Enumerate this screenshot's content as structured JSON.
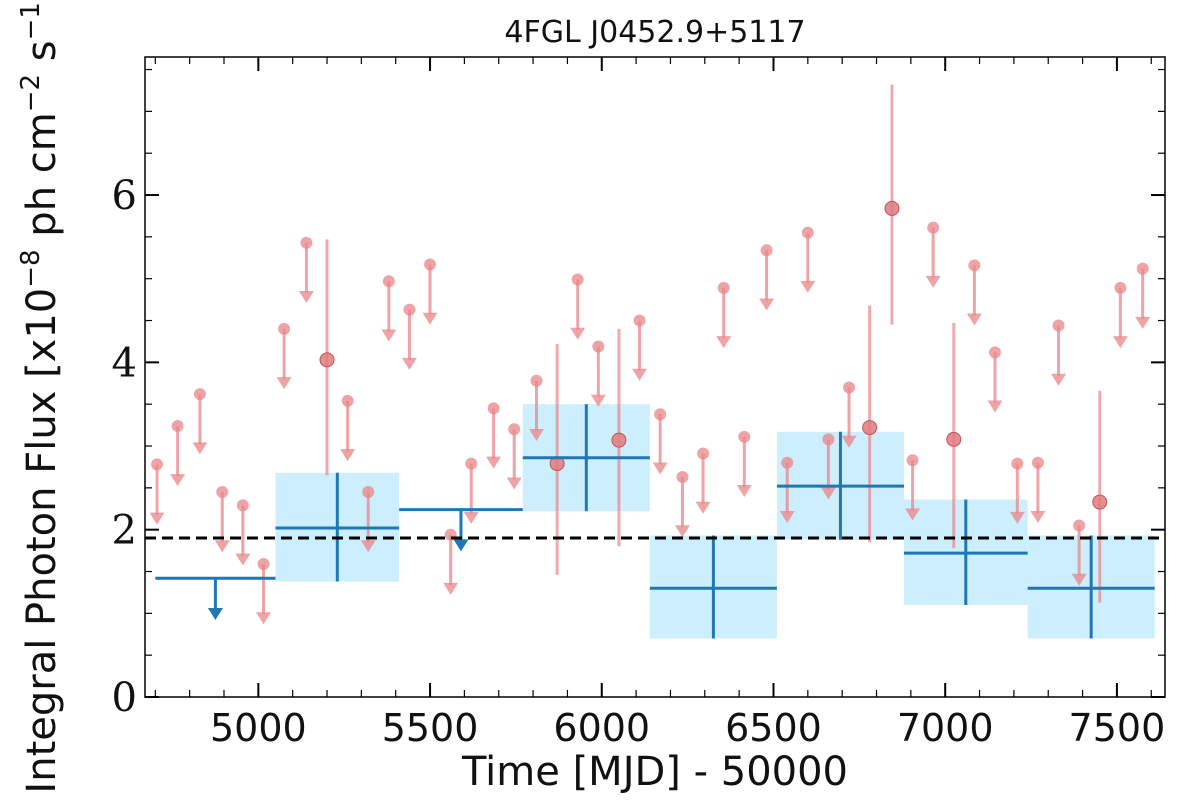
{
  "chart_data": {
    "type": "scatter",
    "title": "4FGL J0452.9+5117",
    "xlabel": "Time [MJD] - 50000",
    "ylabel": {
      "main": "Integral Photon Flux [x10",
      "exp1": "−8",
      "mid": " ph cm",
      "exp2": "−2",
      "mid2": " s",
      "exp3": "−1",
      "end": "]"
    },
    "xlim": [
      4670,
      7640
    ],
    "ylim": [
      0,
      7.65
    ],
    "xticks": [
      5000,
      5500,
      6000,
      6500,
      7000,
      7500
    ],
    "xtick_labels": [
      "5000",
      "5500",
      "6000",
      "6500",
      "7000",
      "7500"
    ],
    "yticks": [
      0,
      2,
      4,
      6
    ],
    "ytick_labels": [
      "0",
      "2",
      "4",
      "6"
    ],
    "grid": false,
    "legend": "none",
    "mean_flux": 1.9,
    "colors": {
      "long_bins": "#1f77b4",
      "long_bins_error_box": "#cdeefc",
      "short_bins": "#e8868a",
      "mean_line": "#000000"
    },
    "series": [
      {
        "bins": [
          {
            "x0": 4700,
            "x1": 5050,
            "y": 1.42,
            "type": "upper_limit"
          },
          {
            "x0": 5050,
            "x1": 5410,
            "y": 2.02,
            "ylo": 1.38,
            "yhi": 2.68,
            "type": "detection"
          },
          {
            "x0": 5410,
            "x1": 5770,
            "y": 2.24,
            "type": "upper_limit"
          },
          {
            "x0": 5770,
            "x1": 6140,
            "y": 2.86,
            "ylo": 2.22,
            "yhi": 3.5,
            "type": "detection"
          },
          {
            "x0": 6140,
            "x1": 6510,
            "y": 1.3,
            "ylo": 0.7,
            "yhi": 1.93,
            "type": "detection"
          },
          {
            "x0": 6510,
            "x1": 6880,
            "y": 2.52,
            "ylo": 1.88,
            "yhi": 3.17,
            "type": "detection"
          },
          {
            "x0": 6880,
            "x1": 7240,
            "y": 1.72,
            "ylo": 1.1,
            "yhi": 2.36,
            "type": "detection"
          },
          {
            "x0": 7240,
            "x1": 7610,
            "y": 1.3,
            "ylo": 0.7,
            "yhi": 1.93,
            "type": "detection"
          }
        ]
      },
      {
        "points": [
          {
            "x": 4705,
            "y": 2.78,
            "type": "upper_limit"
          },
          {
            "x": 4765,
            "y": 3.24,
            "type": "upper_limit"
          },
          {
            "x": 4830,
            "y": 3.62,
            "type": "upper_limit"
          },
          {
            "x": 4895,
            "y": 2.45,
            "type": "upper_limit"
          },
          {
            "x": 4955,
            "y": 2.29,
            "type": "upper_limit"
          },
          {
            "x": 5015,
            "y": 1.59,
            "type": "upper_limit"
          },
          {
            "x": 5075,
            "y": 4.4,
            "type": "upper_limit"
          },
          {
            "x": 5140,
            "y": 5.43,
            "type": "upper_limit"
          },
          {
            "x": 5200,
            "y": 4.03,
            "ylo": 2.65,
            "yhi": 5.47,
            "type": "detection"
          },
          {
            "x": 5260,
            "y": 3.54,
            "type": "upper_limit"
          },
          {
            "x": 5320,
            "y": 2.45,
            "type": "upper_limit"
          },
          {
            "x": 5380,
            "y": 4.97,
            "type": "upper_limit"
          },
          {
            "x": 5440,
            "y": 4.63,
            "type": "upper_limit"
          },
          {
            "x": 5500,
            "y": 5.17,
            "type": "upper_limit"
          },
          {
            "x": 5560,
            "y": 1.94,
            "type": "upper_limit"
          },
          {
            "x": 5620,
            "y": 2.79,
            "type": "upper_limit"
          },
          {
            "x": 5685,
            "y": 3.45,
            "type": "upper_limit"
          },
          {
            "x": 5745,
            "y": 3.2,
            "type": "upper_limit"
          },
          {
            "x": 5810,
            "y": 3.78,
            "type": "upper_limit"
          },
          {
            "x": 5870,
            "y": 2.79,
            "ylo": 1.46,
            "yhi": 4.22,
            "type": "detection"
          },
          {
            "x": 5930,
            "y": 4.99,
            "type": "upper_limit"
          },
          {
            "x": 5990,
            "y": 4.19,
            "type": "upper_limit"
          },
          {
            "x": 6050,
            "y": 3.07,
            "ylo": 1.8,
            "yhi": 4.4,
            "type": "detection"
          },
          {
            "x": 6110,
            "y": 4.5,
            "type": "upper_limit"
          },
          {
            "x": 6170,
            "y": 3.38,
            "type": "upper_limit"
          },
          {
            "x": 6235,
            "y": 2.63,
            "type": "upper_limit"
          },
          {
            "x": 6295,
            "y": 2.91,
            "type": "upper_limit"
          },
          {
            "x": 6355,
            "y": 4.89,
            "type": "upper_limit"
          },
          {
            "x": 6415,
            "y": 3.11,
            "type": "upper_limit"
          },
          {
            "x": 6480,
            "y": 5.34,
            "type": "upper_limit"
          },
          {
            "x": 6540,
            "y": 2.8,
            "type": "upper_limit"
          },
          {
            "x": 6600,
            "y": 5.55,
            "type": "upper_limit"
          },
          {
            "x": 6660,
            "y": 3.08,
            "type": "upper_limit"
          },
          {
            "x": 6720,
            "y": 3.7,
            "type": "upper_limit"
          },
          {
            "x": 6780,
            "y": 3.22,
            "ylo": 1.85,
            "yhi": 4.68,
            "type": "detection"
          },
          {
            "x": 6845,
            "y": 5.84,
            "ylo": 4.45,
            "yhi": 7.32,
            "type": "detection"
          },
          {
            "x": 6905,
            "y": 2.83,
            "type": "upper_limit"
          },
          {
            "x": 6965,
            "y": 5.61,
            "type": "upper_limit"
          },
          {
            "x": 7025,
            "y": 3.08,
            "ylo": 1.78,
            "yhi": 4.47,
            "type": "detection"
          },
          {
            "x": 7085,
            "y": 5.16,
            "type": "upper_limit"
          },
          {
            "x": 7145,
            "y": 4.12,
            "type": "upper_limit"
          },
          {
            "x": 7210,
            "y": 2.79,
            "type": "upper_limit"
          },
          {
            "x": 7270,
            "y": 2.8,
            "type": "upper_limit"
          },
          {
            "x": 7330,
            "y": 4.44,
            "type": "upper_limit"
          },
          {
            "x": 7390,
            "y": 2.05,
            "type": "upper_limit"
          },
          {
            "x": 7450,
            "y": 2.33,
            "ylo": 1.13,
            "yhi": 3.66,
            "type": "detection"
          },
          {
            "x": 7510,
            "y": 4.89,
            "type": "upper_limit"
          },
          {
            "x": 7575,
            "y": 5.12,
            "type": "upper_limit"
          }
        ]
      }
    ]
  }
}
